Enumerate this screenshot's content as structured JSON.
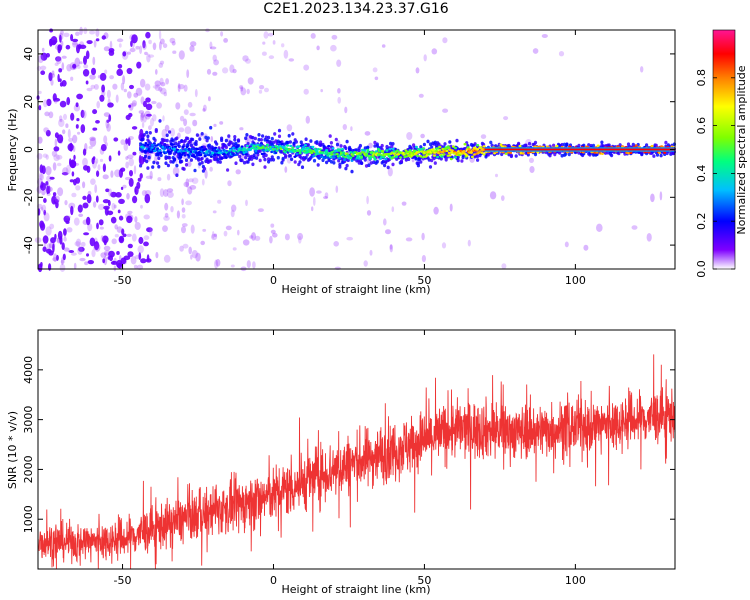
{
  "title": "C2E1.2023.134.23.37.G16",
  "chart_data": [
    {
      "type": "heatmap",
      "title": "C2E1.2023.134.23.37.G16",
      "xlabel": "Height of straight line (km)",
      "ylabel": "Frequency (Hz)",
      "xlim": [
        -78,
        133
      ],
      "ylim": [
        -50,
        50
      ],
      "x_ticks": [
        -50,
        0,
        50,
        100
      ],
      "y_ticks": [
        -40,
        -20,
        0,
        20,
        40
      ],
      "grid": false,
      "colorbar": {
        "label": "Normalized spectral amplitude",
        "range": [
          0,
          1
        ],
        "ticks": [
          0.0,
          0.2,
          0.4,
          0.6,
          0.8
        ],
        "colormap": [
          "#ffffff",
          "#7f00ff",
          "#0000ff",
          "#00bfff",
          "#00ff7f",
          "#7fff00",
          "#ffff00",
          "#ff7f00",
          "#ff0000",
          "#ff1493"
        ]
      },
      "ridge": {
        "description_points_x": [
          -44,
          -35,
          -25,
          -15,
          -5,
          5,
          15,
          25,
          35,
          45,
          55,
          65,
          75,
          90,
          110,
          133
        ],
        "frequency_hz": [
          1,
          0,
          -1,
          -1,
          1,
          0,
          -1,
          -2,
          -2,
          -2,
          -1,
          -1,
          0,
          0,
          0,
          0
        ],
        "amplitude": [
          0.35,
          0.3,
          0.3,
          0.35,
          0.45,
          0.5,
          0.5,
          0.55,
          0.6,
          0.65,
          0.7,
          0.8,
          0.85,
          0.9,
          0.92,
          0.95
        ]
      }
    },
    {
      "type": "line",
      "xlabel": "Height of straight line (km)",
      "ylabel": "SNR (10 * v/v)",
      "xlim": [
        -78,
        133
      ],
      "ylim": [
        0,
        4800
      ],
      "x_ticks": [
        -50,
        0,
        50,
        100
      ],
      "y_ticks": [
        1000,
        2000,
        3000,
        4000
      ],
      "grid": false,
      "series": [
        {
          "color": "#ee3333",
          "x": [
            -78,
            -60,
            -50,
            -40,
            -30,
            -20,
            -10,
            0,
            10,
            20,
            30,
            40,
            50,
            60,
            70,
            80,
            90,
            100,
            110,
            120,
            133
          ],
          "y": [
            550,
            550,
            600,
            800,
            1000,
            1150,
            1300,
            1500,
            1750,
            2000,
            2200,
            2400,
            2600,
            2800,
            2800,
            2750,
            2800,
            2850,
            2900,
            3000,
            3100
          ],
          "spread": [
            350,
            350,
            380,
            420,
            450,
            450,
            500,
            500,
            550,
            550,
            550,
            550,
            550,
            550,
            550,
            500,
            500,
            500,
            500,
            500,
            500
          ]
        }
      ]
    }
  ]
}
